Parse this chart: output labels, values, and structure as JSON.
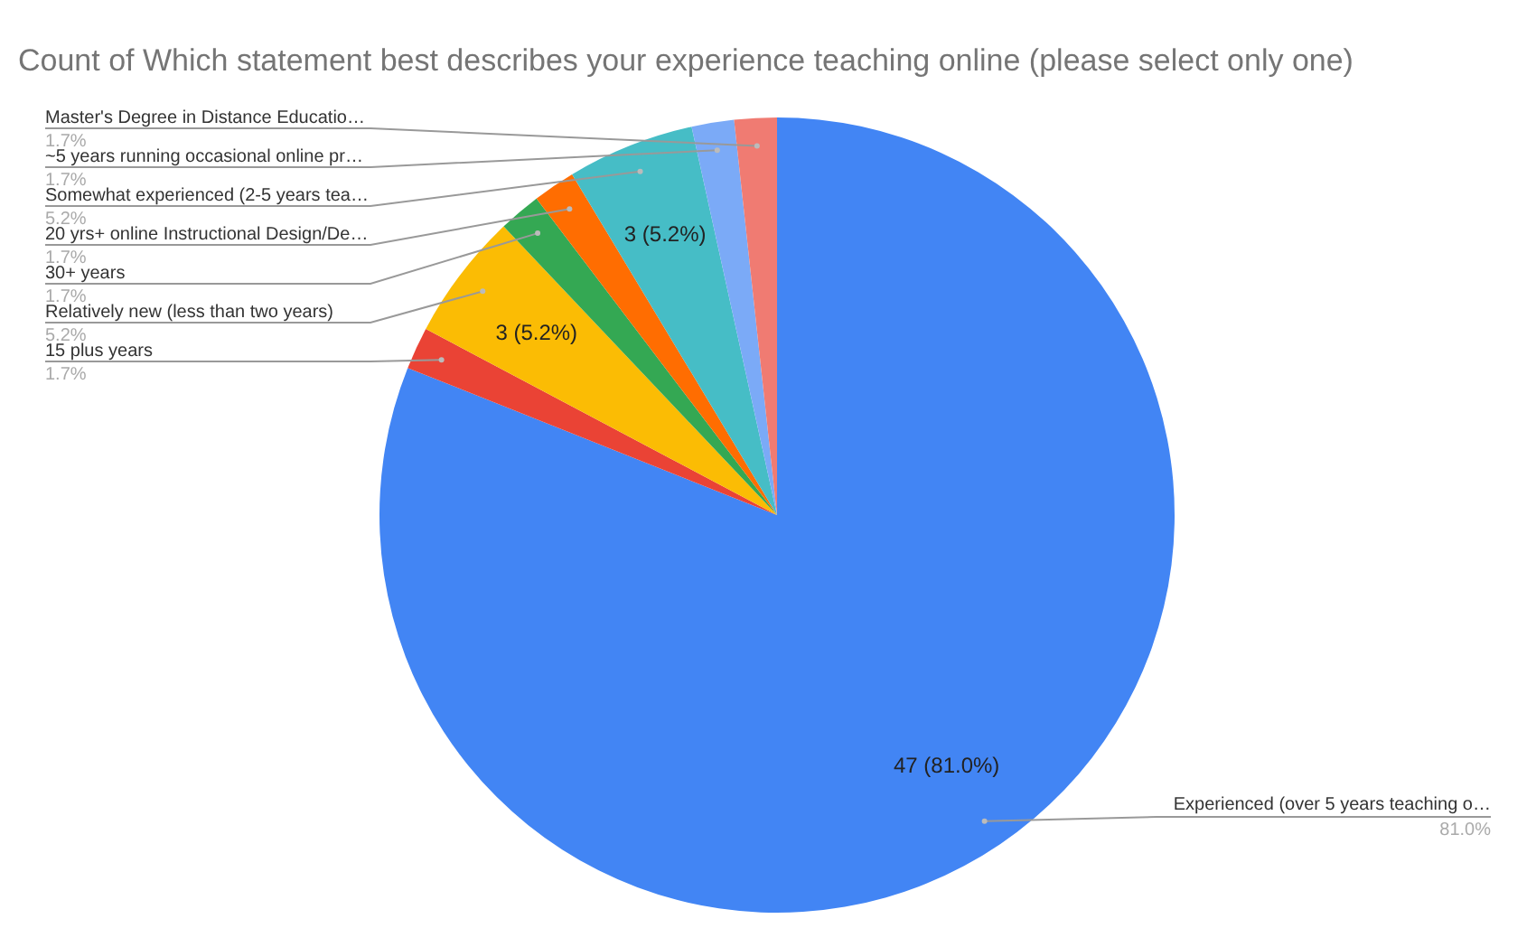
{
  "chart_data": {
    "type": "pie",
    "title": "Count of Which statement best describes your experience teaching online (please select only one)",
    "categories": [
      "Experienced (over 5 years teaching o…",
      "15 plus years",
      "Relatively new (less than two years)",
      "30+ years",
      "20 yrs+ online Instructional Design/De…",
      "Somewhat experienced (2-5 years tea…",
      "~5 years running occasional online pr…",
      "Master's Degree in Distance Educatio…"
    ],
    "values": [
      47,
      1,
      3,
      1,
      1,
      3,
      1,
      1
    ],
    "colors": [
      "#4285f4",
      "#ea4335",
      "#fbbc04",
      "#34a853",
      "#ff6d01",
      "#46bdc6",
      "#7baaf7",
      "#f07b72"
    ],
    "value_labels": [
      "47 (81.0%)",
      null,
      "3 (5.2%)",
      null,
      null,
      "3 (5.2%)",
      null,
      null
    ],
    "annotations": [
      "81.0%",
      "1.7%",
      "5.2%",
      "1.7%",
      "1.7%",
      "5.2%",
      "1.7%",
      "1.7%"
    ]
  }
}
